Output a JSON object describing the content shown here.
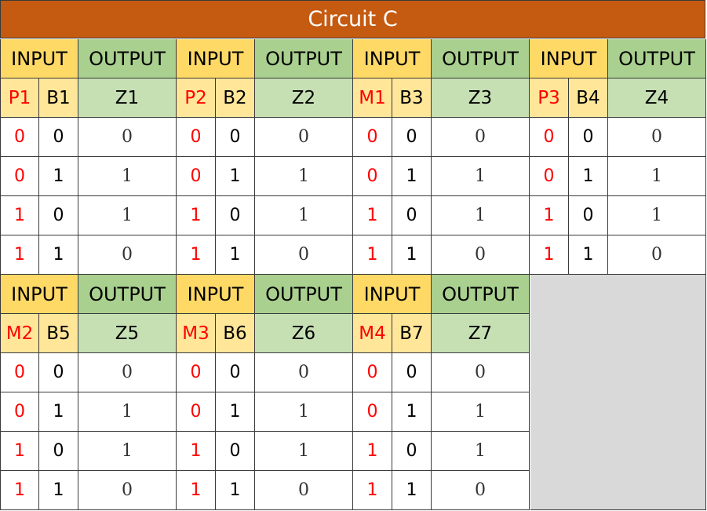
{
  "title": "Circuit C",
  "header_labels": {
    "input": "INPUT",
    "output": "OUTPUT"
  },
  "tables": [
    {
      "p": "P1",
      "b": "B1",
      "z": "Z1",
      "rows": [
        [
          "0",
          "0",
          "0"
        ],
        [
          "0",
          "1",
          "1"
        ],
        [
          "1",
          "0",
          "1"
        ],
        [
          "1",
          "1",
          "0"
        ]
      ]
    },
    {
      "p": "P2",
      "b": "B2",
      "z": "Z2",
      "rows": [
        [
          "0",
          "0",
          "0"
        ],
        [
          "0",
          "1",
          "1"
        ],
        [
          "1",
          "0",
          "1"
        ],
        [
          "1",
          "1",
          "0"
        ]
      ]
    },
    {
      "p": "M1",
      "b": "B3",
      "z": "Z3",
      "rows": [
        [
          "0",
          "0",
          "0"
        ],
        [
          "0",
          "1",
          "1"
        ],
        [
          "1",
          "0",
          "1"
        ],
        [
          "1",
          "1",
          "0"
        ]
      ]
    },
    {
      "p": "P3",
      "b": "B4",
      "z": "Z4",
      "rows": [
        [
          "0",
          "0",
          "0"
        ],
        [
          "0",
          "1",
          "1"
        ],
        [
          "1",
          "0",
          "1"
        ],
        [
          "1",
          "1",
          "0"
        ]
      ]
    },
    {
      "p": "M2",
      "b": "B5",
      "z": "Z5",
      "rows": [
        [
          "0",
          "0",
          "0"
        ],
        [
          "0",
          "1",
          "1"
        ],
        [
          "1",
          "0",
          "1"
        ],
        [
          "1",
          "1",
          "0"
        ]
      ]
    },
    {
      "p": "M3",
      "b": "B6",
      "z": "Z6",
      "rows": [
        [
          "0",
          "0",
          "0"
        ],
        [
          "0",
          "1",
          "1"
        ],
        [
          "1",
          "0",
          "1"
        ],
        [
          "1",
          "1",
          "0"
        ]
      ]
    },
    {
      "p": "M4",
      "b": "B7",
      "z": "Z7",
      "rows": [
        [
          "0",
          "0",
          "0"
        ],
        [
          "0",
          "1",
          "1"
        ],
        [
          "1",
          "0",
          "1"
        ],
        [
          "1",
          "1",
          "0"
        ]
      ]
    }
  ],
  "colors": {
    "title_bg": "#c55a11",
    "input_header_bg": "#ffd966",
    "output_header_bg": "#a9d08e",
    "input_name_bg": "#ffe699",
    "output_name_bg": "#c6e0b4",
    "first_input_text": "#ff0000",
    "empty_area_bg": "#d9d9d9"
  }
}
